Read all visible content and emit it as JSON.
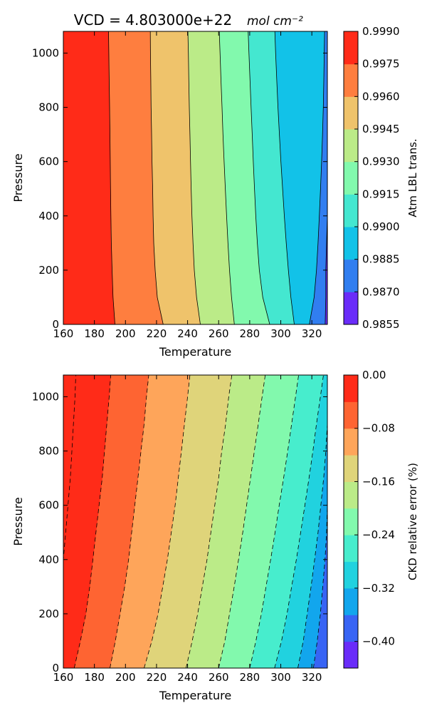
{
  "chart_data": [
    {
      "type": "contour",
      "title": "VCD = 4.803000e+22",
      "title_unit": "mol cm⁻²",
      "xlabel": "Temperature",
      "ylabel": "Pressure",
      "xlim": [
        160,
        330
      ],
      "ylim": [
        0,
        1080
      ],
      "xticks": [
        160,
        180,
        200,
        220,
        240,
        260,
        280,
        300,
        320
      ],
      "yticks": [
        0,
        200,
        400,
        600,
        800,
        1000
      ],
      "colorbar": {
        "label": "Atm LBL trans.",
        "levels": [
          0.9855,
          0.987,
          0.9885,
          0.99,
          0.9915,
          0.993,
          0.9945,
          0.996,
          0.9975,
          0.999
        ],
        "tick_labels": [
          "0.9855",
          "0.9870",
          "0.9885",
          "0.9900",
          "0.9915",
          "0.9930",
          "0.9945",
          "0.9960",
          "0.9975",
          "0.9990"
        ],
        "colors": [
          "#6a2cf9",
          "#317ef0",
          "#12c2e8",
          "#44e7d0",
          "#82f9ad",
          "#bbeb88",
          "#efc36b",
          "#fe7e3f",
          "#ff2b18"
        ]
      },
      "contour_lines": {
        "style": "solid",
        "pressures": [
          0,
          100,
          200,
          300,
          400,
          500,
          600,
          700,
          800,
          900,
          1000,
          1080
        ],
        "boundary_temperatures": [
          [
            328.6,
            329.0,
            329.0,
            329.5,
            330.0,
            330.0,
            330.0,
            330.0,
            330.0,
            330.0,
            330.0,
            330.0
          ],
          [
            318.4,
            321.5,
            323.0,
            324.0,
            324.8,
            325.6,
            326.3,
            326.9,
            327.4,
            327.7,
            328.0,
            328.2
          ],
          [
            308.7,
            306.5,
            304.9,
            303.5,
            302.3,
            301.2,
            300.1,
            299.1,
            298.2,
            297.4,
            296.7,
            296.2
          ],
          [
            292.9,
            288.4,
            286.2,
            284.9,
            283.9,
            283.1,
            282.3,
            281.6,
            280.9,
            280.2,
            279.5,
            279.0
          ],
          [
            270.1,
            268.3,
            267.0,
            266.0,
            265.1,
            264.3,
            263.5,
            262.8,
            262.2,
            261.5,
            260.9,
            260.4
          ],
          [
            248.2,
            245.8,
            244.3,
            243.5,
            242.8,
            242.3,
            241.9,
            241.5,
            241.1,
            240.8,
            240.5,
            240.2
          ],
          [
            224.3,
            220.5,
            219.1,
            218.2,
            217.8,
            217.5,
            217.1,
            216.8,
            216.5,
            216.3,
            216.1,
            216.0
          ],
          [
            193.2,
            192.0,
            191.4,
            190.9,
            190.6,
            190.4,
            190.2,
            190.0,
            189.8,
            189.5,
            189.3,
            189.1
          ]
        ]
      }
    },
    {
      "type": "contour",
      "title": "",
      "xlabel": "Temperature",
      "ylabel": "Pressure",
      "xlim": [
        160,
        330
      ],
      "ylim": [
        0,
        1080
      ],
      "xticks": [
        160,
        180,
        200,
        220,
        240,
        260,
        280,
        300,
        320
      ],
      "yticks": [
        0,
        200,
        400,
        600,
        800,
        1000
      ],
      "colorbar": {
        "label": "CKD relative error (%)",
        "levels": [
          -0.44,
          -0.4,
          -0.36,
          -0.32,
          -0.28,
          -0.24,
          -0.2,
          -0.16,
          -0.12,
          -0.08,
          -0.04,
          0.0
        ],
        "tick_labels": [
          "−0.40",
          "−0.32",
          "−0.24",
          "−0.16",
          "−0.08",
          "0.00"
        ],
        "tick_values": [
          -0.4,
          -0.32,
          -0.24,
          -0.16,
          -0.08,
          0.0
        ],
        "colors": [
          "#6a2cf9",
          "#3864f4",
          "#12a6ed",
          "#21d2df",
          "#47edcd",
          "#82f9ad",
          "#bbeb88",
          "#dfd47a",
          "#fea55a",
          "#fe6432",
          "#ff2b18"
        ]
      },
      "contour_lines": {
        "style": "dashed",
        "pressures": [
          0,
          100,
          200,
          300,
          400,
          500,
          600,
          700,
          800,
          900,
          1000,
          1080
        ],
        "boundary_temperatures": [
          [
            330.0,
            330.0,
            330.0,
            330.0,
            330.0,
            330.0,
            330.0,
            330.0,
            330.0,
            330.0,
            330.0,
            330.0
          ],
          [
            321.0,
            323.5,
            325.5,
            327.0,
            328.5,
            329.5,
            330.0,
            330.0,
            330.0,
            330.0,
            330.0,
            330.0
          ],
          [
            311.0,
            314.5,
            317.0,
            319.5,
            321.8,
            324.0,
            325.8,
            327.6,
            329.0,
            330.0,
            330.0,
            330.0
          ],
          [
            296.0,
            300.5,
            304.0,
            307.0,
            310.0,
            312.8,
            315.5,
            318.2,
            320.7,
            323.0,
            325.5,
            327.5
          ],
          [
            280.0,
            284.0,
            287.5,
            290.5,
            293.5,
            296.3,
            299.0,
            301.8,
            304.5,
            307.0,
            309.5,
            311.5
          ],
          [
            260.0,
            264.0,
            267.0,
            270.0,
            272.8,
            275.5,
            278.0,
            280.5,
            283.0,
            285.5,
            288.0,
            290.0
          ],
          [
            239.0,
            243.0,
            246.5,
            249.5,
            252.5,
            255.0,
            257.5,
            260.0,
            262.0,
            264.5,
            266.5,
            268.5
          ],
          [
            212.0,
            217.0,
            221.0,
            224.0,
            227.0,
            229.5,
            232.0,
            234.0,
            236.0,
            238.0,
            240.0,
            241.5
          ],
          [
            190.0,
            193.5,
            196.5,
            199.5,
            202.0,
            204.0,
            206.0,
            208.0,
            210.0,
            212.0,
            213.5,
            215.0
          ],
          [
            167.0,
            171.0,
            174.5,
            177.0,
            179.0,
            181.0,
            183.0,
            185.0,
            186.5,
            188.0,
            189.5,
            190.5
          ],
          [
            160.0,
            160.0,
            160.0,
            160.0,
            160.0,
            161.5,
            163.0,
            164.5,
            165.5,
            166.5,
            167.5,
            168.0
          ]
        ]
      }
    }
  ]
}
